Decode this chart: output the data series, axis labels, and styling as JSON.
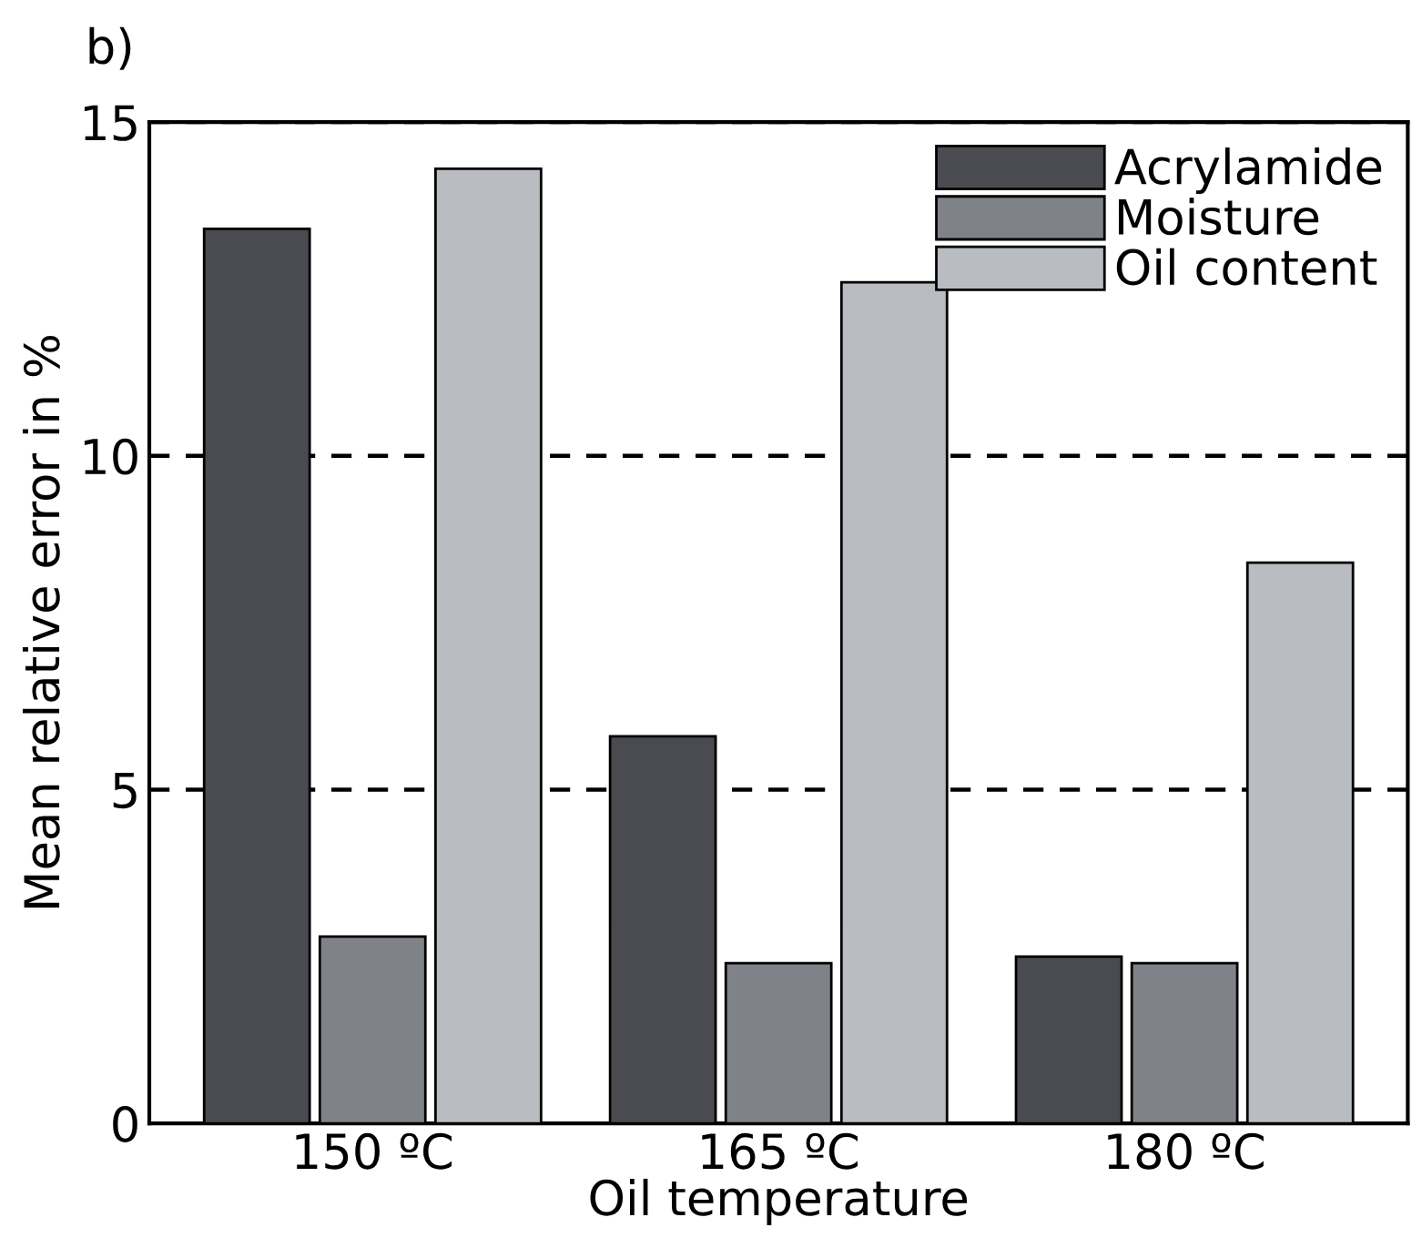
{
  "chart_data": {
    "type": "bar",
    "xlabel": "Oil temperature",
    "ylabel": "Mean relative error in %",
    "annotations": [
      "b)"
    ],
    "categories": [
      "150 ºC",
      "165 ºC",
      "180 ºC"
    ],
    "series": [
      {
        "name": "Acrylamide",
        "color": "#4a4b50",
        "values": [
          13.4,
          5.8,
          2.5
        ]
      },
      {
        "name": "Moisture",
        "color": "#7f8288",
        "values": [
          2.8,
          2.4,
          2.4
        ]
      },
      {
        "name": "Oil content",
        "color": "#b9bcc0",
        "values": [
          14.3,
          12.6,
          8.4
        ]
      }
    ],
    "ylim": [
      0,
      15
    ],
    "yticks": [
      0,
      5,
      10,
      15
    ],
    "grid": "y",
    "legend": "top right"
  }
}
